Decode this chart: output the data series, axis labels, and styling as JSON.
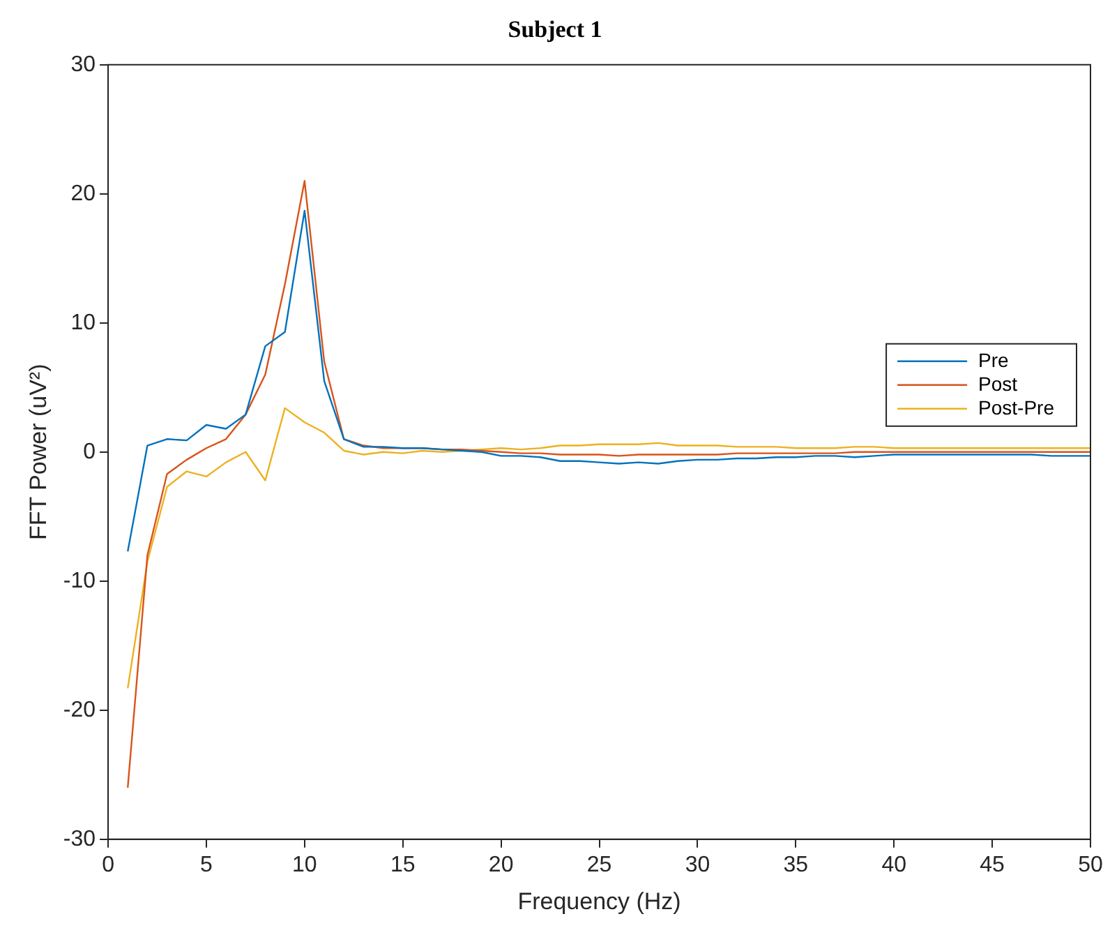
{
  "chart_data": {
    "type": "line",
    "title": "Subject 1",
    "xlabel": "Frequency (Hz)",
    "ylabel": "FFT Power (uV²)",
    "x": [
      1,
      2,
      3,
      4,
      5,
      6,
      7,
      8,
      9,
      10,
      11,
      12,
      13,
      14,
      15,
      16,
      17,
      18,
      19,
      20,
      21,
      22,
      23,
      24,
      25,
      26,
      27,
      28,
      29,
      30,
      31,
      32,
      33,
      34,
      35,
      36,
      37,
      38,
      39,
      40,
      41,
      42,
      43,
      44,
      45,
      46,
      47,
      48,
      49,
      50
    ],
    "series": [
      {
        "name": "Pre",
        "color": "#0072bd",
        "values": [
          -7.7,
          0.5,
          1.0,
          0.9,
          2.1,
          1.8,
          2.9,
          8.2,
          9.3,
          18.7,
          5.5,
          1.0,
          0.4,
          0.4,
          0.3,
          0.3,
          0.2,
          0.1,
          0,
          -0.3,
          -0.3,
          -0.4,
          -0.7,
          -0.7,
          -0.8,
          -0.9,
          -0.8,
          -0.9,
          -0.7,
          -0.6,
          -0.6,
          -0.5,
          -0.5,
          -0.4,
          -0.4,
          -0.3,
          -0.3,
          -0.4,
          -0.3,
          -0.2,
          -0.2,
          -0.2,
          -0.2,
          -0.2,
          -0.2,
          -0.2,
          -0.2,
          -0.3,
          -0.3,
          -0.3
        ]
      },
      {
        "name": "Post",
        "color": "#d95319",
        "values": [
          -26,
          -8,
          -1.7,
          -0.6,
          0.3,
          1.0,
          2.9,
          6.0,
          13,
          21,
          7,
          1.0,
          0.5,
          0.3,
          0.3,
          0.3,
          0.2,
          0.2,
          0.1,
          0,
          -0.1,
          -0.1,
          -0.2,
          -0.2,
          -0.2,
          -0.3,
          -0.2,
          -0.2,
          -0.2,
          -0.2,
          -0.2,
          -0.1,
          -0.1,
          -0.1,
          -0.1,
          -0.1,
          -0.1,
          0,
          0,
          0,
          0,
          0,
          0,
          0,
          0,
          0,
          0,
          0,
          0,
          0
        ]
      },
      {
        "name": "Post-Pre",
        "color": "#edb120",
        "values": [
          -18.3,
          -8.5,
          -2.7,
          -1.5,
          -1.9,
          -0.8,
          0,
          -2.2,
          3.4,
          2.3,
          1.5,
          0.1,
          -0.2,
          0,
          -0.1,
          0.1,
          0,
          0.1,
          0.2,
          0.3,
          0.2,
          0.3,
          0.5,
          0.5,
          0.6,
          0.6,
          0.6,
          0.7,
          0.5,
          0.5,
          0.5,
          0.4,
          0.4,
          0.4,
          0.3,
          0.3,
          0.3,
          0.4,
          0.4,
          0.3,
          0.3,
          0.3,
          0.3,
          0.3,
          0.3,
          0.3,
          0.3,
          0.3,
          0.3,
          0.3
        ]
      }
    ],
    "xlim": [
      0,
      50
    ],
    "xticks": [
      0,
      5,
      10,
      15,
      20,
      25,
      30,
      35,
      40,
      45,
      50
    ],
    "ylim": [
      -30,
      30
    ],
    "yticks": [
      -30,
      -20,
      -10,
      0,
      10,
      20,
      30
    ],
    "grid": false,
    "legend": "right",
    "marker": "none",
    "line_style": "solid"
  }
}
